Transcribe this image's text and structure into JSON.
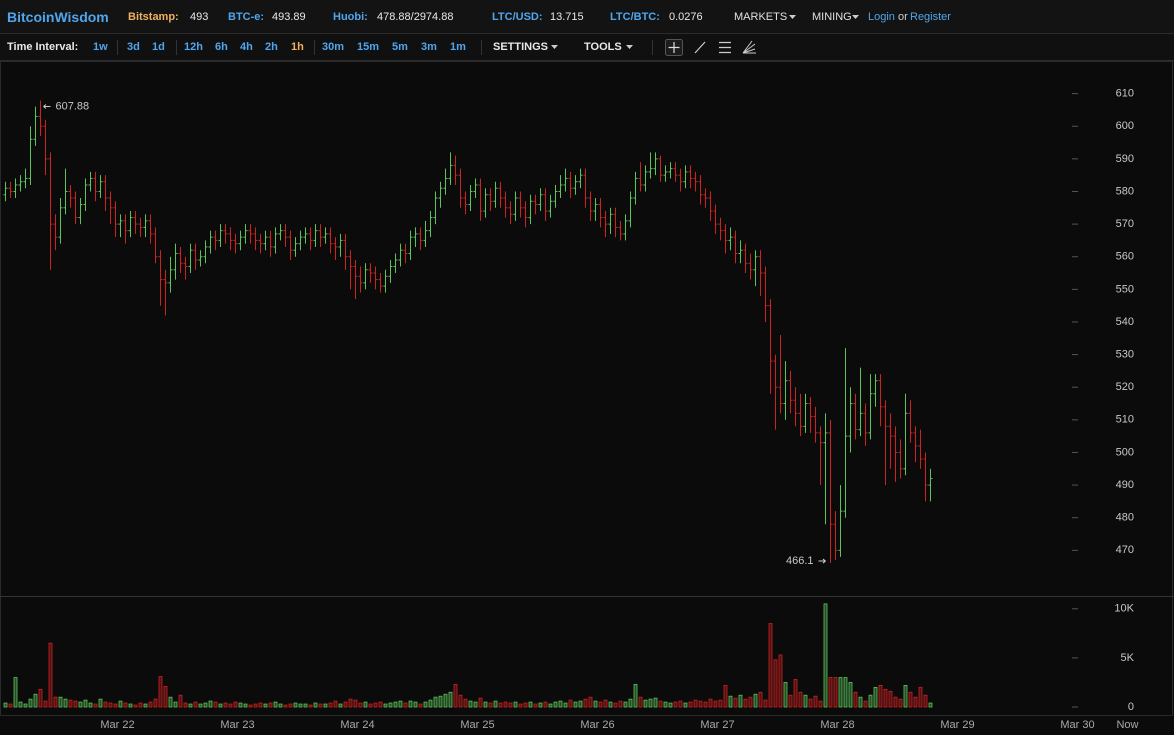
{
  "header": {
    "logo": "BitcoinWisdom",
    "tickers": [
      {
        "label": "Bitstamp:",
        "value": "493"
      },
      {
        "label": "BTC-e:",
        "value": "493.89"
      },
      {
        "label": "Huobi:",
        "value": "478.88/2974.88"
      },
      {
        "label": "LTC/USD:",
        "value": "13.715"
      },
      {
        "label": "LTC/BTC:",
        "value": "0.0276"
      }
    ],
    "menus": [
      "MARKETS",
      "MINING"
    ],
    "login": "Login",
    "or": "or",
    "register": "Register"
  },
  "toolbar": {
    "interval_label": "Time Interval:",
    "intervals": [
      "1w",
      "3d",
      "1d",
      "12h",
      "6h",
      "4h",
      "2h",
      "1h",
      "30m",
      "15m",
      "5m",
      "3m",
      "1m"
    ],
    "active_interval": "1h",
    "settings": "SETTINGS",
    "tools": "TOOLS"
  },
  "chart_data": {
    "type": "ohlc",
    "categories": [
      null,
      null,
      null,
      null,
      null,
      null,
      null,
      null,
      null,
      null,
      null,
      null,
      null,
      null,
      null,
      null,
      null,
      null,
      null,
      null,
      null,
      null,
      "Mar 22",
      null,
      null,
      null,
      null,
      null,
      null,
      null,
      null,
      null,
      null,
      null,
      null,
      null,
      null,
      null,
      null,
      null,
      null,
      null,
      null,
      null,
      null,
      null,
      "Mar 23",
      null,
      null,
      null,
      null,
      null,
      null,
      null,
      null,
      null,
      null,
      null,
      null,
      null,
      null,
      null,
      null,
      null,
      null,
      null,
      null,
      null,
      null,
      null,
      "Mar 24",
      null,
      null,
      null,
      null,
      null,
      null,
      null,
      null,
      null,
      null,
      null,
      null,
      null,
      null,
      null,
      null,
      null,
      null,
      null,
      null,
      null,
      null,
      null,
      "Mar 25",
      null,
      null,
      null,
      null,
      null,
      null,
      null,
      null,
      null,
      null,
      null,
      null,
      null,
      null,
      null,
      null,
      null,
      null,
      null,
      null,
      null,
      null,
      null,
      "Mar 26",
      null,
      null,
      null,
      null,
      null,
      null,
      null,
      null,
      null,
      null,
      null,
      null,
      null,
      null,
      null,
      null,
      null,
      null,
      null,
      null,
      null,
      null,
      null,
      "Mar 27",
      null,
      null,
      null,
      null,
      null,
      null,
      null,
      null,
      null,
      null,
      null,
      null,
      null,
      null,
      null,
      null,
      null,
      null,
      null,
      null,
      null,
      null,
      null,
      "Mar 28",
      null,
      null,
      null,
      null,
      null,
      null,
      null,
      null,
      null,
      null,
      null,
      null,
      null,
      null,
      null,
      null,
      null,
      null,
      null,
      null,
      null,
      null,
      null,
      "Mar 29",
      null,
      null,
      null,
      null,
      null,
      null,
      null,
      null,
      null,
      null,
      null,
      null,
      null,
      null,
      null,
      null,
      null,
      null,
      null,
      null,
      null,
      null,
      null,
      "Mar 30",
      null,
      null,
      null,
      null,
      null,
      null,
      null,
      null,
      null,
      "Now"
    ],
    "open": [
      579,
      581,
      580,
      582,
      583,
      584,
      596,
      603,
      600,
      590,
      570,
      566,
      575,
      580,
      578,
      572,
      576,
      582,
      584,
      580,
      583,
      578,
      575,
      570,
      571,
      568,
      572,
      570,
      569,
      571,
      567,
      560,
      553,
      552,
      556,
      561,
      558,
      557,
      562,
      559,
      560,
      563,
      566,
      565,
      568,
      567,
      565,
      564,
      566,
      568,
      567,
      565,
      564,
      566,
      563,
      567,
      568,
      566,
      562,
      564,
      566,
      567,
      565,
      568,
      566,
      567,
      564,
      563,
      565,
      560,
      557,
      554,
      552,
      556,
      555,
      553,
      551,
      554,
      557,
      559,
      562,
      561,
      566,
      567,
      565,
      568,
      572,
      578,
      581,
      584,
      588,
      585,
      578,
      576,
      580,
      582,
      574,
      579,
      577,
      581,
      578,
      575,
      573,
      578,
      575,
      572,
      577,
      576,
      579,
      574,
      577,
      580,
      582,
      584,
      581,
      583,
      585,
      578,
      574,
      576,
      572,
      570,
      573,
      569,
      567,
      571,
      578,
      584,
      582,
      586,
      587,
      590,
      585,
      586,
      587,
      585,
      583,
      586,
      584,
      583,
      579,
      578,
      574,
      570,
      568,
      565,
      566,
      561,
      562,
      558,
      556,
      560,
      555,
      545,
      528,
      520,
      515,
      522,
      516,
      512,
      508,
      515,
      511,
      506,
      503,
      506,
      478,
      470,
      482,
      505,
      515,
      507,
      512,
      506,
      518,
      522,
      514,
      508,
      505,
      500,
      495,
      512,
      506,
      502,
      498,
      490,
      null,
      null,
      null,
      null,
      null,
      null,
      null,
      null,
      null,
      null,
      null,
      null,
      null,
      null,
      null,
      null,
      null,
      null,
      null,
      null,
      null,
      null,
      null,
      null,
      null,
      null,
      null,
      null,
      null,
      null,
      null,
      null,
      null,
      null,
      null,
      null,
      null,
      null,
      null
    ],
    "high": [
      583,
      583,
      584,
      585,
      587,
      600,
      606,
      607.88,
      602,
      592,
      573,
      578,
      587,
      582,
      580,
      578,
      584,
      586,
      586,
      585,
      585,
      580,
      577,
      573,
      573,
      574,
      574,
      572,
      573,
      573,
      569,
      562,
      556,
      560,
      564,
      563,
      560,
      564,
      564,
      562,
      565,
      568,
      568,
      570,
      570,
      569,
      567,
      568,
      570,
      570,
      569,
      567,
      568,
      568,
      569,
      570,
      570,
      568,
      566,
      568,
      569,
      569,
      570,
      570,
      569,
      569,
      566,
      567,
      567,
      562,
      559,
      557,
      558,
      558,
      557,
      555,
      556,
      559,
      561,
      564,
      564,
      568,
      569,
      569,
      571,
      574,
      580,
      583,
      587,
      592,
      591,
      587,
      580,
      582,
      584,
      584,
      581,
      581,
      583,
      583,
      580,
      577,
      580,
      580,
      577,
      579,
      579,
      581,
      581,
      579,
      582,
      585,
      587,
      586,
      585,
      587,
      587,
      580,
      578,
      578,
      574,
      575,
      575,
      571,
      573,
      580,
      586,
      589,
      588,
      592,
      592,
      591,
      588,
      589,
      589,
      587,
      588,
      588,
      586,
      585,
      581,
      580,
      576,
      572,
      570,
      569,
      568,
      565,
      564,
      561,
      562,
      562,
      557,
      547,
      530,
      536,
      528,
      525,
      520,
      518,
      518,
      517,
      514,
      508,
      512,
      510,
      482,
      490,
      532,
      520,
      518,
      526,
      515,
      524,
      524,
      524,
      516,
      512,
      508,
      504,
      518,
      516,
      508,
      507,
      500,
      495,
      null,
      null,
      null,
      null,
      null,
      null,
      null,
      null,
      null,
      null,
      null,
      null,
      null,
      null,
      null,
      null,
      null,
      null,
      null,
      null,
      null,
      null,
      null,
      null,
      null,
      null,
      null,
      null,
      null,
      null,
      null,
      null,
      null,
      null,
      null,
      null,
      null,
      null,
      null
    ],
    "low": [
      577,
      578,
      578,
      580,
      581,
      582,
      594,
      597,
      585,
      556,
      562,
      564,
      573,
      575,
      570,
      570,
      574,
      580,
      577,
      578,
      574,
      570,
      566,
      566,
      564,
      566,
      567,
      566,
      566,
      564,
      558,
      545,
      542,
      549,
      553,
      555,
      553,
      555,
      556,
      557,
      558,
      561,
      562,
      563,
      564,
      562,
      561,
      562,
      564,
      564,
      562,
      561,
      562,
      560,
      561,
      565,
      563,
      559,
      560,
      562,
      564,
      562,
      563,
      563,
      564,
      561,
      559,
      560,
      556,
      550,
      547,
      549,
      550,
      552,
      550,
      549,
      549,
      552,
      555,
      557,
      558,
      559,
      563,
      562,
      563,
      566,
      570,
      575,
      579,
      582,
      582,
      575,
      573,
      574,
      578,
      571,
      572,
      574,
      575,
      575,
      572,
      570,
      571,
      572,
      569,
      570,
      573,
      574,
      571,
      572,
      575,
      578,
      580,
      578,
      579,
      581,
      575,
      571,
      571,
      569,
      566,
      567,
      566,
      565,
      565,
      569,
      576,
      580,
      580,
      584,
      585,
      583,
      583,
      584,
      583,
      580,
      581,
      581,
      580,
      576,
      575,
      571,
      567,
      565,
      561,
      562,
      558,
      558,
      555,
      553,
      551,
      548,
      540,
      518,
      507,
      512,
      510,
      512,
      508,
      505,
      506,
      506,
      503,
      490,
      478,
      466.1,
      467,
      468,
      480,
      500,
      504,
      505,
      502,
      504,
      514,
      508,
      490,
      495,
      491,
      492,
      493,
      503,
      497,
      495,
      485,
      485,
      null,
      null,
      null,
      null,
      null,
      null,
      null,
      null,
      null,
      null,
      null,
      null,
      null,
      null,
      null,
      null,
      null,
      null,
      null,
      null,
      null,
      null,
      null,
      null,
      null,
      null,
      null,
      null,
      null,
      null,
      null,
      null,
      null,
      null,
      null,
      null,
      null,
      null,
      null
    ],
    "close": [
      581,
      580,
      582,
      583,
      584,
      596,
      603,
      600,
      590,
      570,
      566,
      575,
      580,
      578,
      572,
      576,
      582,
      584,
      580,
      583,
      578,
      575,
      570,
      571,
      568,
      572,
      570,
      569,
      571,
      567,
      560,
      553,
      552,
      556,
      561,
      558,
      557,
      562,
      559,
      560,
      563,
      566,
      565,
      568,
      567,
      565,
      564,
      566,
      568,
      567,
      565,
      564,
      566,
      563,
      567,
      568,
      566,
      562,
      564,
      566,
      567,
      565,
      568,
      566,
      567,
      564,
      563,
      565,
      560,
      557,
      554,
      552,
      556,
      555,
      553,
      551,
      554,
      557,
      559,
      562,
      561,
      566,
      567,
      565,
      568,
      572,
      578,
      581,
      584,
      588,
      585,
      578,
      576,
      580,
      582,
      574,
      579,
      577,
      581,
      578,
      575,
      573,
      578,
      575,
      572,
      577,
      576,
      579,
      574,
      577,
      580,
      582,
      584,
      581,
      583,
      585,
      578,
      574,
      576,
      572,
      570,
      573,
      569,
      567,
      571,
      578,
      584,
      582,
      586,
      587,
      590,
      585,
      586,
      587,
      585,
      583,
      586,
      584,
      583,
      579,
      578,
      574,
      570,
      568,
      565,
      566,
      561,
      562,
      558,
      556,
      560,
      555,
      545,
      528,
      520,
      515,
      522,
      516,
      512,
      508,
      515,
      511,
      506,
      503,
      506,
      478,
      470,
      482,
      505,
      515,
      507,
      512,
      506,
      518,
      522,
      514,
      508,
      505,
      500,
      495,
      512,
      506,
      502,
      498,
      490,
      492,
      null,
      null,
      null,
      null,
      null,
      null,
      null,
      null,
      null,
      null,
      null,
      null,
      null,
      null,
      null,
      null,
      null,
      null,
      null,
      null,
      null,
      null,
      null,
      null,
      null,
      null,
      null,
      null,
      null,
      null,
      null,
      null,
      null,
      null,
      null,
      null,
      null,
      null,
      null
    ],
    "up_color": "#5cc45c",
    "down_color": "#cc2222",
    "ylim": [
      456,
      620
    ],
    "yticks": [
      470,
      480,
      490,
      500,
      510,
      520,
      530,
      540,
      550,
      560,
      570,
      580,
      590,
      600,
      610
    ],
    "volume": {
      "values": [
        400,
        300,
        3000,
        500,
        300,
        800,
        1300,
        1800,
        600,
        6500,
        1000,
        1000,
        800,
        700,
        600,
        500,
        700,
        400,
        300,
        800,
        500,
        400,
        300,
        600,
        400,
        300,
        200,
        400,
        300,
        500,
        800,
        3100,
        2100,
        1000,
        500,
        1200,
        400,
        300,
        500,
        300,
        400,
        600,
        500,
        300,
        400,
        300,
        500,
        400,
        300,
        200,
        300,
        400,
        300,
        400,
        500,
        300,
        200,
        300,
        400,
        300,
        300,
        200,
        400,
        300,
        300,
        400,
        600,
        300,
        500,
        800,
        700,
        400,
        500,
        300,
        400,
        500,
        300,
        400,
        500,
        600,
        400,
        600,
        500,
        300,
        500,
        700,
        1000,
        1100,
        1300,
        1500,
        2300,
        1200,
        800,
        600,
        500,
        900,
        500,
        400,
        600,
        400,
        500,
        400,
        500,
        300,
        400,
        500,
        300,
        400,
        500,
        300,
        500,
        600,
        400,
        700,
        500,
        600,
        800,
        1000,
        600,
        500,
        700,
        500,
        400,
        600,
        500,
        800,
        2300,
        1000,
        700,
        800,
        900,
        600,
        500,
        400,
        500,
        600,
        400,
        500,
        700,
        600,
        500,
        800,
        600,
        700,
        2200,
        1100,
        900,
        1200,
        800,
        1000,
        1300,
        1500,
        700,
        8500,
        4800,
        5300,
        2500,
        1200,
        2800,
        1500,
        1200,
        800,
        1100,
        600,
        10500,
        3000,
        3000,
        3000,
        3000,
        2500,
        1500,
        1000,
        600,
        1200,
        2000,
        2200,
        1800,
        1600,
        1000,
        800,
        2200,
        1500,
        1000,
        2000,
        1200,
        400,
        null,
        null,
        null,
        null,
        null,
        null,
        null,
        null,
        null,
        null,
        null,
        null,
        null,
        null,
        null,
        null,
        null,
        null,
        null,
        null,
        null,
        null,
        null,
        null,
        null,
        null,
        null,
        null,
        null,
        null,
        null,
        null,
        null,
        null,
        null,
        null,
        null,
        null,
        null
      ],
      "ylim": [
        0,
        11000
      ],
      "yticks": [
        0,
        {
          "value": 5000,
          "label": "5K"
        },
        {
          "value": 10000,
          "label": "10K"
        }
      ]
    }
  }
}
